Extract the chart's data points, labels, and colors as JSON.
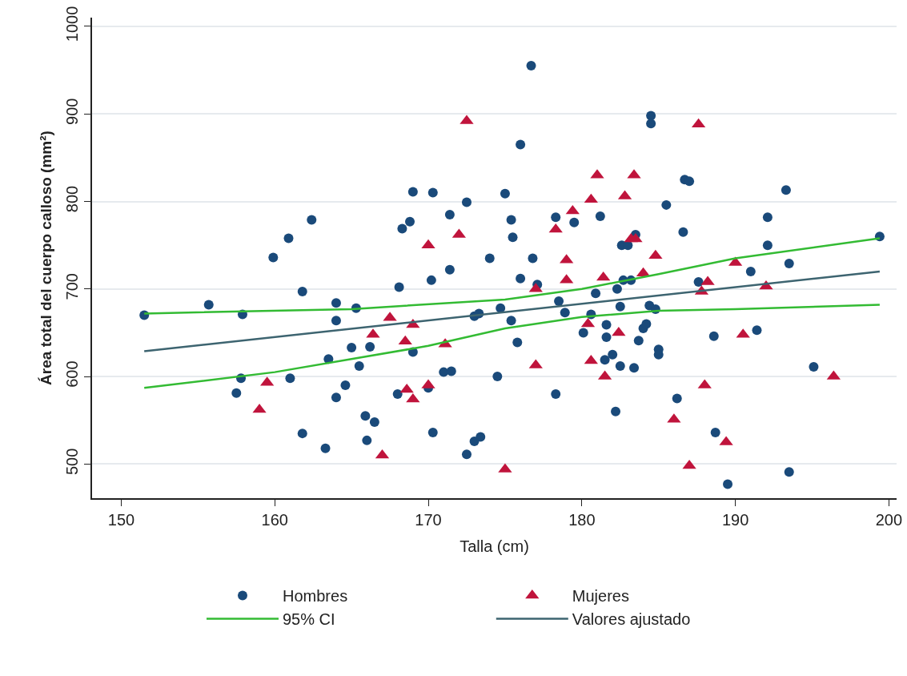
{
  "chart_data": {
    "type": "scatter",
    "xlabel": "Talla (cm)",
    "ylabel": "Área total del cuerpo calloso (mm²)",
    "xlim": [
      148.1,
      200.5
    ],
    "xticks": [
      150,
      160,
      170,
      180,
      190,
      200
    ],
    "ylim": [
      461,
      1010
    ],
    "yticks": [
      500,
      600,
      700,
      800,
      900,
      1000
    ],
    "grid": "y",
    "legend": "bottom",
    "series": [
      {
        "name": "Hombres",
        "type": "scatter",
        "marker": "circle",
        "color": "#1a4a7a",
        "x": [
          151.5,
          155.7,
          157.9,
          157.5,
          157.8,
          159.9,
          160.9,
          161.0,
          161.8,
          161.8,
          162.4,
          163.3,
          163.5,
          164.0,
          164.0,
          164.0,
          164.6,
          165.0,
          165.3,
          165.5,
          165.9,
          166.0,
          166.2,
          166.5,
          168.0,
          168.1,
          168.3,
          168.8,
          169.0,
          169.0,
          170.0,
          170.2,
          170.3,
          170.3,
          171.0,
          171.5,
          171.4,
          171.4,
          172.5,
          172.5,
          173.0,
          173.0,
          173.4,
          173.3,
          174.0,
          174.5,
          174.7,
          175.0,
          175.4,
          175.5,
          175.4,
          175.8,
          176.0,
          176.0,
          176.7,
          176.8,
          177.1,
          178.3,
          178.5,
          178.3,
          178.9,
          179.5,
          180.1,
          180.6,
          180.9,
          181.2,
          181.5,
          181.6,
          181.6,
          182.0,
          182.2,
          182.3,
          182.6,
          182.5,
          182.5,
          182.7,
          183.0,
          183.2,
          183.4,
          183.5,
          183.7,
          184.0,
          184.2,
          184.4,
          184.5,
          184.5,
          184.8,
          185.0,
          185.0,
          185.5,
          186.2,
          186.6,
          186.7,
          187.0,
          187.6,
          188.7,
          188.6,
          189.5,
          191.0,
          191.4,
          192.1,
          192.1,
          193.3,
          193.5,
          193.5,
          195.1,
          199.4
        ],
        "values": [
          670,
          682,
          671,
          581,
          598,
          736,
          758,
          598,
          697,
          535,
          779,
          518,
          620,
          684,
          664,
          576,
          590,
          633,
          678,
          612,
          555,
          527,
          634,
          548,
          580,
          702,
          769,
          777,
          811,
          628,
          587,
          710,
          810,
          536,
          605,
          606,
          722,
          785,
          511,
          799,
          526,
          669,
          531,
          672,
          735,
          600,
          678,
          809,
          779,
          759,
          664,
          639,
          712,
          865,
          955,
          735,
          705,
          580,
          686,
          782,
          673,
          776,
          650,
          671,
          695,
          783,
          619,
          659,
          645,
          625,
          560,
          700,
          750,
          680,
          612,
          710,
          750,
          710,
          610,
          762,
          641,
          655,
          660,
          681,
          898,
          889,
          677,
          631,
          625,
          796,
          575,
          765,
          825,
          823,
          708,
          536,
          646,
          477,
          720,
          653,
          782,
          750,
          813,
          491,
          729,
          611,
          760
        ]
      },
      {
        "name": "Mujeres",
        "type": "scatter",
        "marker": "triangle",
        "color": "#c0143c",
        "x": [
          159.0,
          159.5,
          166.4,
          167.0,
          167.5,
          168.5,
          168.6,
          169.0,
          169.0,
          170.0,
          170.0,
          171.1,
          172.0,
          172.5,
          175.0,
          177.0,
          177.0,
          178.3,
          179.0,
          179.0,
          179.4,
          180.4,
          180.6,
          180.6,
          181.0,
          181.4,
          181.5,
          182.4,
          182.8,
          183.2,
          183.4,
          183.5,
          184.0,
          184.8,
          186.0,
          187.0,
          187.6,
          187.8,
          188.0,
          188.2,
          189.4,
          190.0,
          190.5,
          192.0,
          196.4
        ],
        "values": [
          562,
          593,
          648,
          510,
          667,
          640,
          585,
          574,
          659,
          590,
          750,
          637,
          762,
          892,
          494,
          613,
          700,
          768,
          733,
          710,
          789,
          660,
          618,
          802,
          830,
          713,
          600,
          650,
          806,
          757,
          830,
          757,
          718,
          738,
          551,
          498,
          888,
          697,
          590,
          708,
          525,
          730,
          648,
          703,
          600
        ]
      },
      {
        "name": "95% CI",
        "type": "line",
        "color": "#33bb33",
        "x": [
          151.5,
          160,
          170,
          175,
          180,
          185,
          190,
          199.4
        ],
        "values": [
          587,
          605,
          635,
          655,
          668,
          675,
          677,
          682
        ]
      },
      {
        "type": "line",
        "color": "#33bb33",
        "x": [
          151.5,
          165,
          175,
          180,
          185,
          190,
          199.4
        ],
        "values": [
          672,
          677,
          688,
          700,
          717,
          735,
          758
        ]
      },
      {
        "name": "Valores ajustado",
        "type": "line",
        "color": "#3d6470",
        "x": [
          151.5,
          199.4
        ],
        "values": [
          629,
          720
        ]
      }
    ]
  }
}
